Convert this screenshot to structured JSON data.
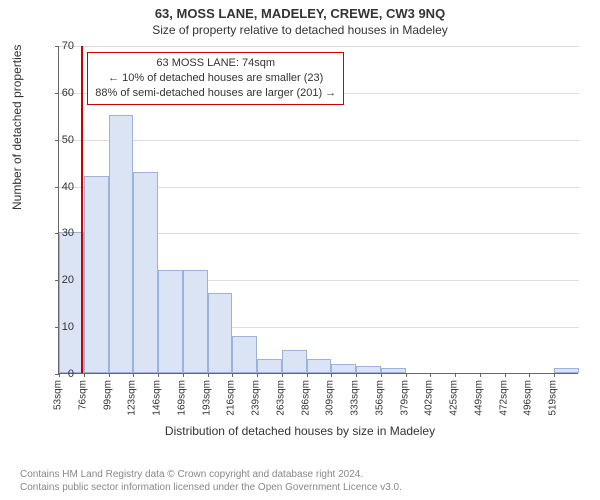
{
  "title_main": "63, MOSS LANE, MADELEY, CREWE, CW3 9NQ",
  "title_sub": "Size of property relative to detached houses in Madeley",
  "chart": {
    "type": "histogram",
    "ylabel": "Number of detached properties",
    "xlabel": "Distribution of detached houses by size in Madeley",
    "ylim": [
      0,
      70
    ],
    "ytick_step": 10,
    "grid_color": "#dddddd",
    "background_color": "#ffffff",
    "bar_fill": "#dbe4f5",
    "bar_border": "#9bb2da",
    "axis_color": "#666666",
    "ref_color": "#cc0000",
    "categories": [
      "53sqm",
      "76sqm",
      "99sqm",
      "123sqm",
      "146sqm",
      "169sqm",
      "193sqm",
      "216sqm",
      "239sqm",
      "263sqm",
      "286sqm",
      "309sqm",
      "333sqm",
      "356sqm",
      "379sqm",
      "402sqm",
      "425sqm",
      "449sqm",
      "472sqm",
      "496sqm",
      "519sqm"
    ],
    "values": [
      30,
      42,
      55,
      43,
      22,
      22,
      17,
      8,
      3,
      5,
      3,
      2,
      1.5,
      1,
      0,
      0,
      0,
      0,
      0,
      0,
      1
    ],
    "ref_line_x_category_index": 0.9,
    "info_box": {
      "line1": "63 MOSS LANE: 74sqm",
      "line2": "← 10% of detached houses are smaller (23)",
      "line3": "88% of semi-detached houses are larger (201) →"
    }
  },
  "footer": {
    "line1": "Contains HM Land Registry data © Crown copyright and database right 2024.",
    "line2": "Contains public sector information licensed under the Open Government Licence v3.0."
  }
}
